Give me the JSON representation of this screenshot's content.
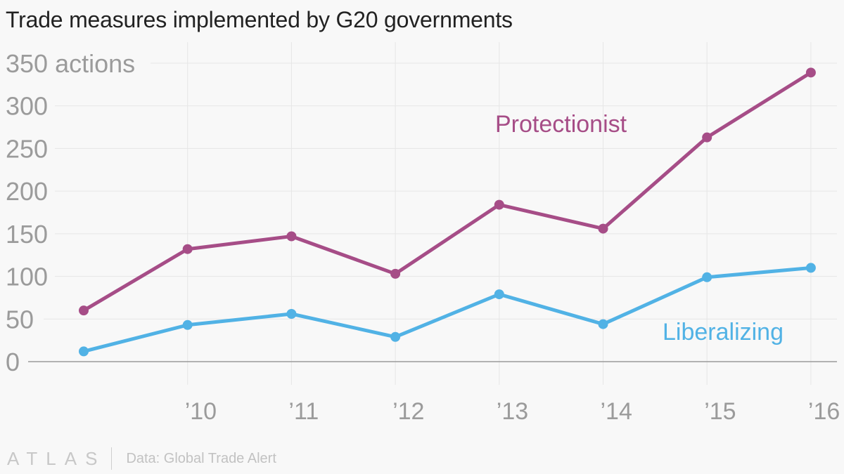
{
  "title": "Trade measures implemented by G20 governments",
  "footer": {
    "logo": "ATLAS",
    "source": "Data: Global Trade Alert"
  },
  "colors": {
    "protectionist": "#a64d87",
    "liberalizing": "#51b2e5",
    "grid": "#e6e6e6",
    "axis": "#9a9a9a",
    "tick_text": "#9b9b9b",
    "background": "#f8f8f8"
  },
  "chart_data": {
    "type": "line",
    "title": "Trade measures implemented by G20 governments",
    "xlabel": "",
    "ylabel": "actions",
    "x": [
      2009,
      2010,
      2011,
      2012,
      2013,
      2014,
      2015,
      2016
    ],
    "x_tick_labels": [
      {
        "x": 2010,
        "label": "’10"
      },
      {
        "x": 2011,
        "label": "’11"
      },
      {
        "x": 2012,
        "label": "’12"
      },
      {
        "x": 2013,
        "label": "’13"
      },
      {
        "x": 2014,
        "label": "’14"
      },
      {
        "x": 2015,
        "label": "’15"
      },
      {
        "x": 2016,
        "label": "’16"
      }
    ],
    "y_ticks": [
      0,
      50,
      100,
      150,
      200,
      250,
      300,
      350
    ],
    "y_tick_labels": [
      "0",
      "50",
      "100",
      "150",
      "200",
      "250",
      "300",
      "350 actions"
    ],
    "ylim": [
      0,
      350
    ],
    "grid": true,
    "legend": "inline labels",
    "series": [
      {
        "name": "Protectionist",
        "color": "#a64d87",
        "values": [
          60,
          132,
          147,
          103,
          184,
          156,
          263,
          339
        ],
        "label_near": "upper-middle"
      },
      {
        "name": "Liberalizing",
        "color": "#51b2e5",
        "values": [
          12,
          43,
          56,
          29,
          79,
          44,
          99,
          110
        ],
        "label_near": "lower-right"
      }
    ]
  }
}
